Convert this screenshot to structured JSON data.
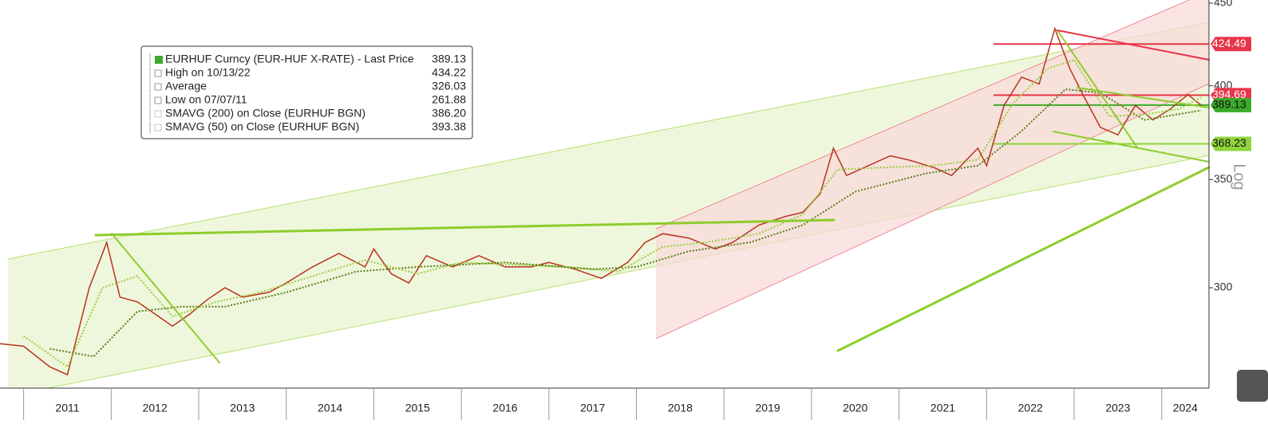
{
  "chart_data": {
    "type": "line",
    "log_scale": true,
    "scale_label": "Log",
    "xlim": [
      2010.73,
      2024.54
    ],
    "xticks": [
      2011,
      2012,
      2013,
      2014,
      2015,
      2016,
      2017,
      2018,
      2019,
      2020,
      2021,
      2022,
      2023,
      2024
    ],
    "ylim": [
      260,
      452
    ],
    "yticks": [
      300,
      350,
      400,
      450
    ],
    "series": [
      {
        "name": "EURHUF Curncy (EUR-HUF X-RATE) - Last Price",
        "color": "#b8321f",
        "x": [
          2010.73,
          2011.0,
          2011.3,
          2011.5,
          2011.75,
          2011.95,
          2012.1,
          2012.3,
          2012.5,
          2012.7,
          2012.9,
          2013.1,
          2013.3,
          2013.5,
          2013.8,
          2014.0,
          2014.3,
          2014.6,
          2014.9,
          2015.0,
          2015.2,
          2015.4,
          2015.6,
          2015.9,
          2016.2,
          2016.5,
          2016.8,
          2017.0,
          2017.3,
          2017.6,
          2017.9,
          2018.1,
          2018.3,
          2018.6,
          2018.9,
          2019.1,
          2019.4,
          2019.7,
          2019.9,
          2020.1,
          2020.25,
          2020.4,
          2020.6,
          2020.9,
          2021.1,
          2021.4,
          2021.6,
          2021.9,
          2022.0,
          2022.2,
          2022.4,
          2022.6,
          2022.78,
          2022.95,
          2023.1,
          2023.3,
          2023.5,
          2023.7,
          2023.9,
          2024.1,
          2024.3,
          2024.45
        ],
        "values": [
          277,
          276,
          268,
          265,
          300,
          320,
          296,
          294,
          289,
          284,
          289,
          295,
          300,
          296,
          298,
          302,
          309,
          315,
          309,
          317,
          306,
          302,
          314,
          309,
          314,
          309,
          309,
          311,
          308,
          304,
          311,
          320,
          324,
          322,
          317,
          320,
          328,
          332,
          334,
          343,
          366,
          352,
          356,
          362,
          360,
          356,
          352,
          366,
          357,
          389,
          405,
          401,
          434,
          410,
          395,
          377,
          373,
          389,
          381,
          387,
          395,
          389.13
        ]
      },
      {
        "name": "SMAVG (200)  on Close (EURHUF BGN)",
        "color": "#5a7d1a",
        "dash": "2 2",
        "x": [
          2011.3,
          2011.8,
          2012.3,
          2012.8,
          2013.3,
          2014.0,
          2014.8,
          2015.5,
          2016.5,
          2017.5,
          2018.0,
          2018.6,
          2019.3,
          2019.9,
          2020.5,
          2021.3,
          2021.9,
          2022.4,
          2022.9,
          2023.3,
          2023.8,
          2024.45
        ],
        "values": [
          275,
          272,
          290,
          292,
          292,
          298,
          307,
          309,
          311,
          308,
          309,
          316,
          320,
          328,
          344,
          353,
          357,
          375,
          398,
          396,
          381,
          386.2
        ]
      },
      {
        "name": "SMAVG (50)  on Close (EURHUF BGN)",
        "color": "#9ccc3c",
        "dash": "2 2",
        "x": [
          2011.0,
          2011.5,
          2011.9,
          2012.3,
          2012.7,
          2013.2,
          2013.7,
          2014.3,
          2014.9,
          2015.5,
          2016.0,
          2016.6,
          2017.2,
          2017.8,
          2018.3,
          2018.8,
          2019.4,
          2019.9,
          2020.3,
          2020.8,
          2021.4,
          2021.9,
          2022.3,
          2022.7,
          2023.0,
          2023.4,
          2023.8,
          2024.2,
          2024.45
        ],
        "values": [
          280,
          268,
          300,
          305,
          288,
          294,
          298,
          305,
          312,
          306,
          311,
          310,
          309,
          307,
          318,
          320,
          324,
          333,
          355,
          356,
          357,
          360,
          390,
          410,
          415,
          383,
          384,
          387,
          393.38
        ]
      }
    ],
    "legend": [
      {
        "label": "EURHUF Curncy (EUR-HUF X-RATE) - Last Price",
        "value": 389.13
      },
      {
        "label": "High on 10/13/22",
        "value": 434.22
      },
      {
        "label": "Average",
        "value": 326.03
      },
      {
        "label": "Low on 07/07/11",
        "value": 261.88
      },
      {
        "label": "SMAVG (200)  on Close (EURHUF BGN)",
        "value": 386.2,
        "value_label": "386.20"
      },
      {
        "label": "SMAVG (50)  on Close (EURHUF BGN)",
        "value": 393.38
      }
    ],
    "levels": [
      {
        "value": 424.49,
        "color": "#e8344a"
      },
      {
        "value": 394.69,
        "color": "#e8344a"
      },
      {
        "value": 389.13,
        "color": "#3caa2a"
      },
      {
        "value": 368.23,
        "color": "#8fd43a"
      }
    ]
  }
}
